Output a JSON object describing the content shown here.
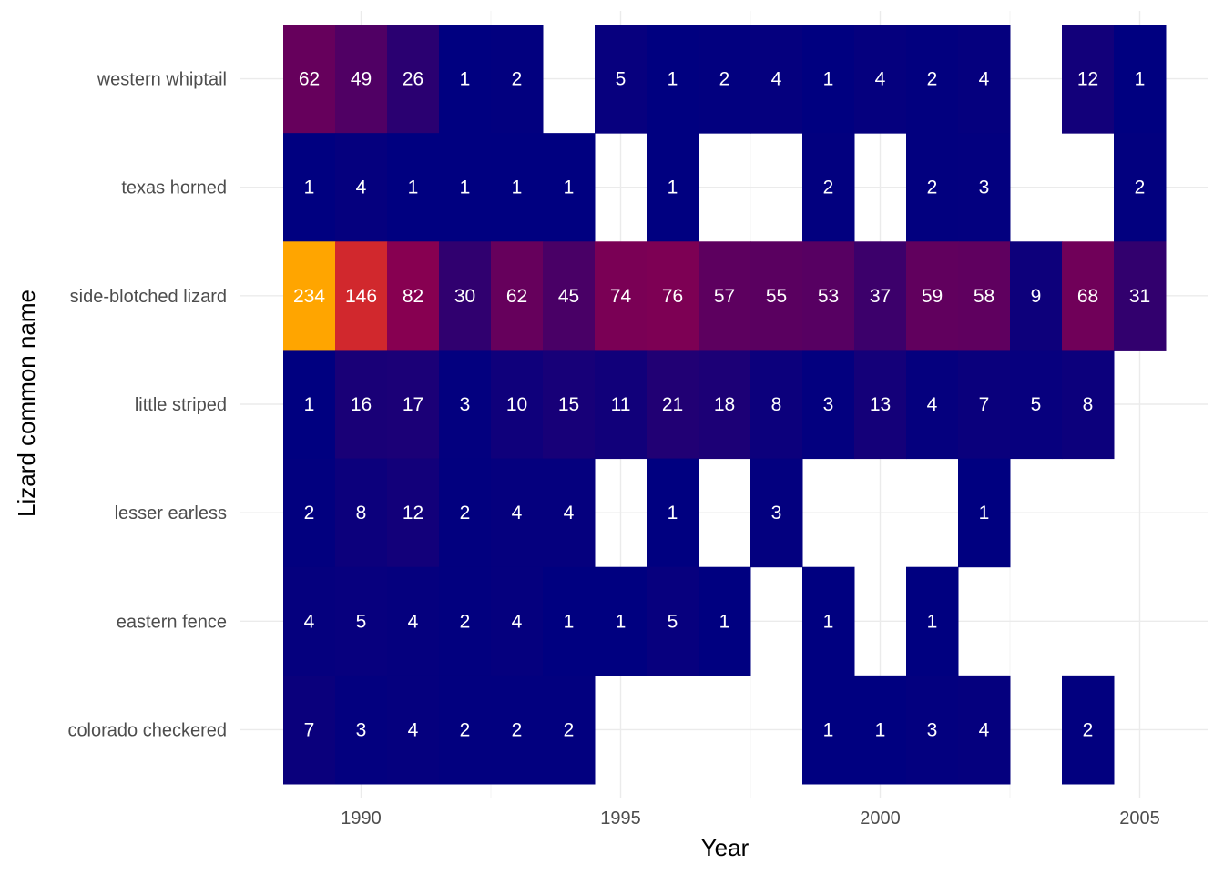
{
  "chart_data": {
    "type": "heatmap",
    "xlabel": "Year",
    "ylabel": "Lizard common name",
    "x_ticks": [
      1990,
      1995,
      2000,
      2005
    ],
    "x_range": [
      1989,
      2005
    ],
    "years": [
      1989,
      1990,
      1991,
      1992,
      1993,
      1994,
      1995,
      1996,
      1997,
      1998,
      1999,
      2000,
      2001,
      2002,
      2003,
      2004,
      2005
    ],
    "categories": [
      "western whiptail",
      "texas horned",
      "side-blotched lizard",
      "little striped",
      "lesser earless",
      "eastern fence",
      "colorado checkered"
    ],
    "values": [
      [
        62,
        49,
        26,
        1,
        2,
        null,
        5,
        1,
        2,
        4,
        1,
        4,
        2,
        4,
        null,
        12,
        1
      ],
      [
        1,
        4,
        1,
        1,
        1,
        1,
        null,
        1,
        null,
        null,
        2,
        null,
        2,
        3,
        null,
        null,
        2
      ],
      [
        234,
        146,
        82,
        30,
        62,
        45,
        74,
        76,
        57,
        55,
        53,
        37,
        59,
        58,
        9,
        68,
        31
      ],
      [
        1,
        16,
        17,
        3,
        10,
        15,
        11,
        21,
        18,
        8,
        3,
        13,
        4,
        7,
        5,
        8,
        null
      ],
      [
        2,
        8,
        12,
        2,
        4,
        4,
        null,
        1,
        null,
        3,
        null,
        null,
        null,
        1,
        null,
        null,
        null
      ],
      [
        4,
        5,
        4,
        2,
        4,
        1,
        1,
        5,
        1,
        null,
        1,
        null,
        1,
        null,
        null,
        null,
        null
      ],
      [
        7,
        3,
        4,
        2,
        2,
        2,
        null,
        null,
        null,
        null,
        1,
        1,
        3,
        4,
        null,
        2,
        null
      ]
    ],
    "color_scale": {
      "low": "#000080",
      "mid": "#C2003C",
      "high": "#FFA500",
      "min": 1,
      "max": 234
    },
    "grid": true,
    "legend": "none"
  }
}
